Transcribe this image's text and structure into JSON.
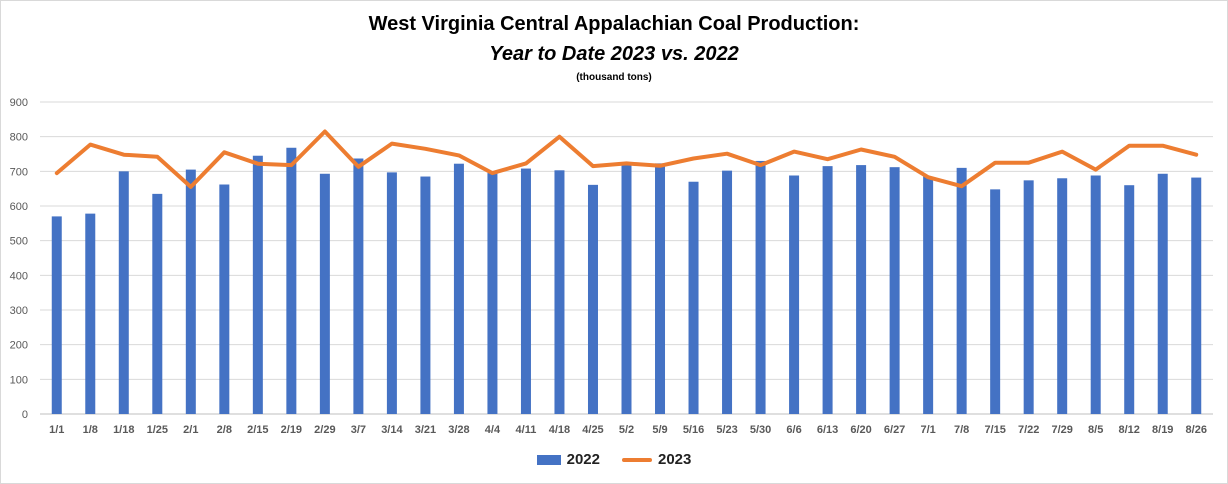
{
  "colors": {
    "bar_2022": "#4472c4",
    "line_2023": "#ed7d31",
    "grid": "#d9d9d9",
    "tick_text": "#595959"
  },
  "chart_data": {
    "type": "bar",
    "title": "West Virginia Central Appalachian Coal Production:",
    "title_line2": "Year to Date 2023 vs. 2022",
    "subtitle": "(thousand tons)",
    "xlabel": "",
    "ylabel": "",
    "ylim": [
      0,
      900
    ],
    "yticks": [
      0,
      100,
      200,
      300,
      400,
      500,
      600,
      700,
      800,
      900
    ],
    "grid": true,
    "legend_position": "bottom",
    "categories": [
      "1/1",
      "1/8",
      "1/18",
      "1/25",
      "2/1",
      "2/8",
      "2/15",
      "2/19",
      "2/29",
      "3/7",
      "3/14",
      "3/21",
      "3/28",
      "4/4",
      "4/11",
      "4/18",
      "4/25",
      "5/2",
      "5/9",
      "5/16",
      "5/23",
      "5/30",
      "6/6",
      "6/13",
      "6/20",
      "6/27",
      "7/1",
      "7/8",
      "7/15",
      "7/22",
      "7/29",
      "8/5",
      "8/12",
      "8/19",
      "8/26"
    ],
    "series": [
      {
        "name": "2022",
        "type": "bar",
        "values": [
          570,
          578,
          700,
          635,
          705,
          662,
          745,
          768,
          693,
          737,
          697,
          685,
          722,
          695,
          708,
          703,
          661,
          720,
          723,
          670,
          702,
          730,
          688,
          715,
          718,
          712,
          685,
          710,
          648,
          674,
          680,
          688,
          660,
          693,
          682
        ]
      },
      {
        "name": "2023",
        "type": "line",
        "values": [
          695,
          777,
          748,
          742,
          655,
          755,
          722,
          718,
          815,
          713,
          780,
          765,
          746,
          695,
          723,
          800,
          715,
          723,
          716,
          737,
          751,
          718,
          757,
          735,
          763,
          742,
          683,
          657,
          725,
          725,
          757,
          705,
          774,
          774,
          748
        ]
      }
    ]
  }
}
